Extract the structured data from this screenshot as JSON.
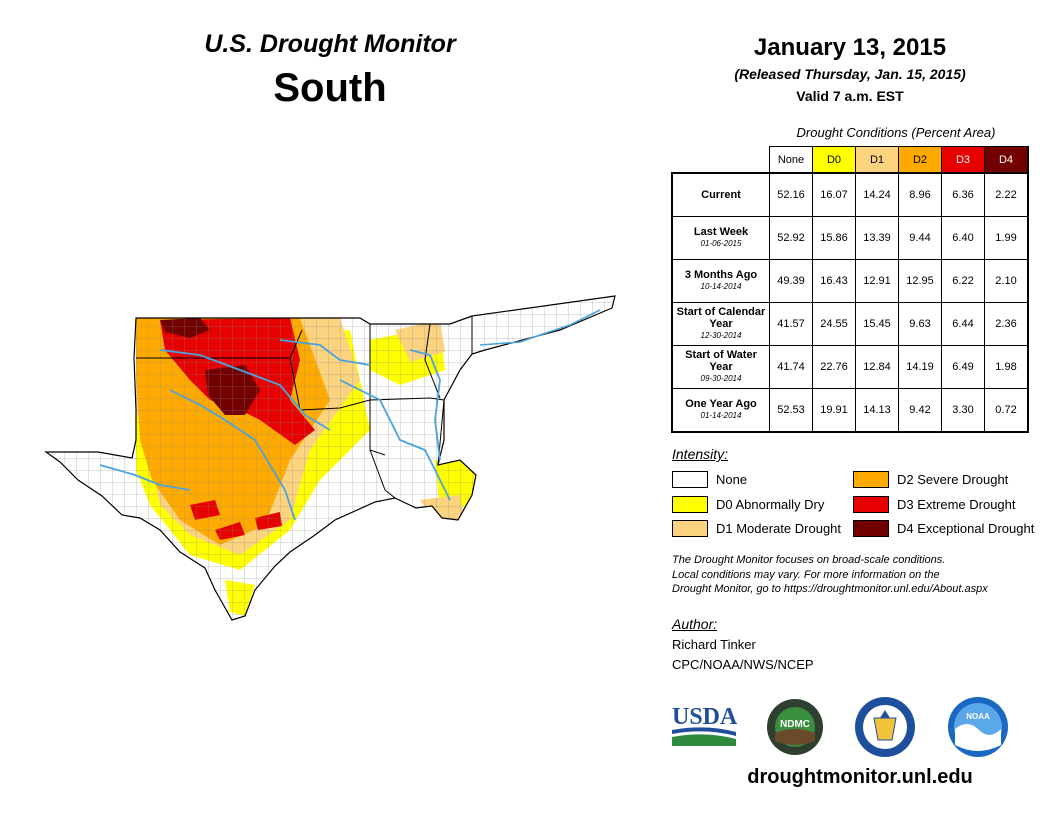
{
  "header": {
    "monitor_title": "U.S. Drought Monitor",
    "region": "South",
    "date": "January 13, 2015",
    "released": "(Released Thursday, Jan. 15, 2015)",
    "valid": "Valid 7 a.m. EST"
  },
  "table": {
    "caption": "Drought Conditions (Percent Area)",
    "columns": [
      "None",
      "D0",
      "D1",
      "D2",
      "D3",
      "D4"
    ],
    "rows": [
      {
        "label": "Current",
        "sub": "",
        "values": [
          "52.16",
          "16.07",
          "14.24",
          "8.96",
          "6.36",
          "2.22"
        ]
      },
      {
        "label": "Last Week",
        "sub": "01-06-2015",
        "values": [
          "52.92",
          "15.86",
          "13.39",
          "9.44",
          "6.40",
          "1.99"
        ]
      },
      {
        "label": "3 Months Ago",
        "sub": "10-14-2014",
        "values": [
          "49.39",
          "16.43",
          "12.91",
          "12.95",
          "6.22",
          "2.10"
        ]
      },
      {
        "label": "Start of Calendar Year",
        "sub": "12-30-2014",
        "values": [
          "41.57",
          "24.55",
          "15.45",
          "9.63",
          "6.44",
          "2.36"
        ]
      },
      {
        "label": "Start of Water Year",
        "sub": "09-30-2014",
        "values": [
          "41.74",
          "22.76",
          "12.84",
          "14.19",
          "6.49",
          "1.98"
        ]
      },
      {
        "label": "One Year Ago",
        "sub": "01-14-2014",
        "values": [
          "52.53",
          "19.91",
          "14.13",
          "9.42",
          "3.30",
          "0.72"
        ]
      }
    ]
  },
  "legend": {
    "title": "Intensity:",
    "items": [
      {
        "label": "None",
        "color": "#ffffff"
      },
      {
        "label": "D0 Abnormally Dry",
        "color": "#ffff00"
      },
      {
        "label": "D1 Moderate Drought",
        "color": "#fcd37f"
      },
      {
        "label": "D2 Severe Drought",
        "color": "#ffaa00"
      },
      {
        "label": "D3 Extreme Drought",
        "color": "#e60000"
      },
      {
        "label": "D4 Exceptional Drought",
        "color": "#730000"
      }
    ]
  },
  "note": {
    "line1": "The Drought Monitor focuses on broad-scale conditions.",
    "line2": "Local conditions may vary. For more information on the",
    "line3": "Drought Monitor, go to https://droughtmonitor.unl.edu/About.aspx"
  },
  "author": {
    "title": "Author:",
    "name": "Richard Tinker",
    "org": "CPC/NOAA/NWS/NCEP"
  },
  "logos": {
    "usda": "USDA",
    "ndmc": "NDMC",
    "noaa": "NOAA"
  },
  "website": "droughtmonitor.unl.edu"
}
